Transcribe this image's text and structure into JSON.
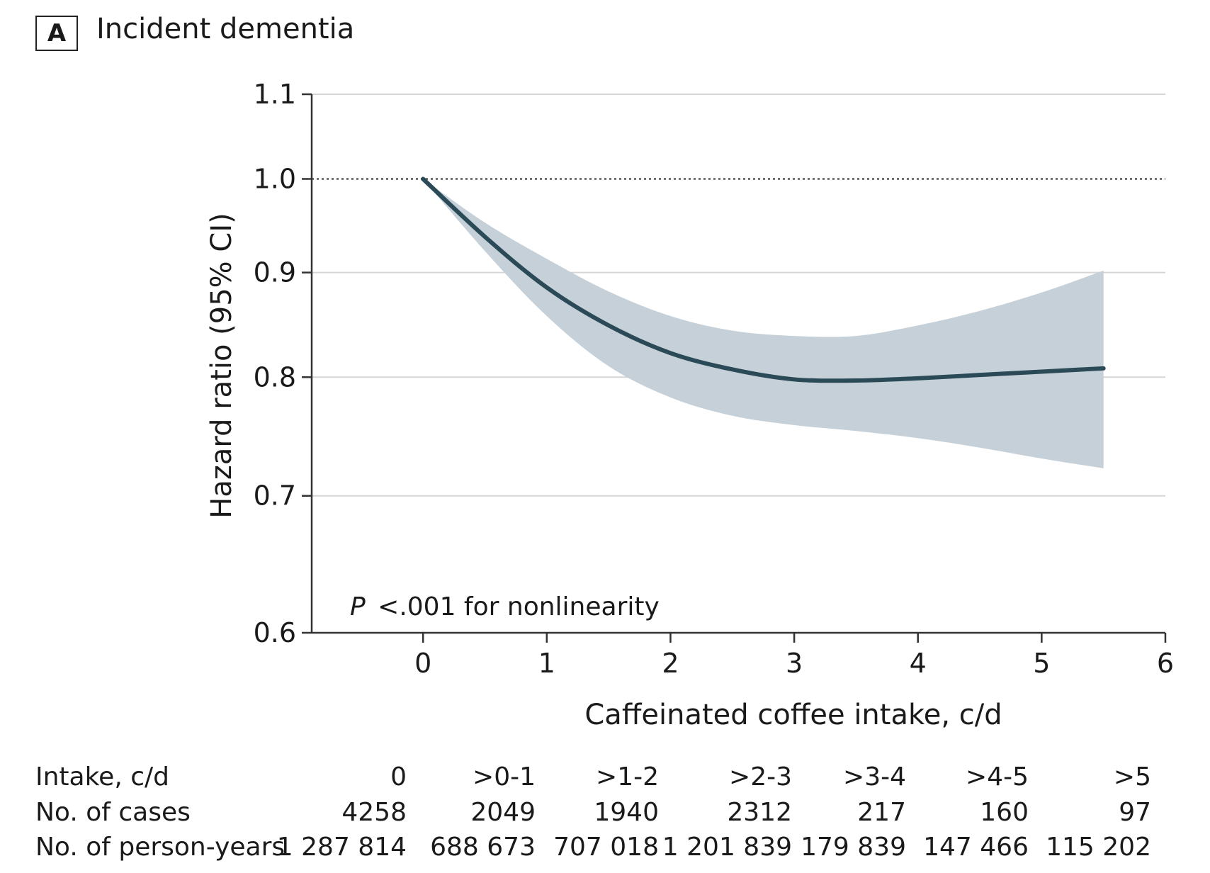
{
  "panel": {
    "badge": "A",
    "title": "Incident dementia"
  },
  "chart_data": {
    "type": "line",
    "xlabel": "Caffeinated coffee intake, c/d",
    "ylabel": "Hazard ratio (95% CI)",
    "xlim": [
      -0.9,
      6
    ],
    "ylim": [
      0.6,
      1.1
    ],
    "y_scale": "log",
    "x_ticks": [
      0,
      1,
      2,
      3,
      4,
      5,
      6
    ],
    "y_ticks": [
      0.6,
      0.7,
      0.8,
      0.9,
      1.0,
      1.1
    ],
    "y_tick_labels": [
      "0.6",
      "0.7",
      "0.8",
      "0.9",
      "1.0",
      "1.1"
    ],
    "grid": "horizontal",
    "reference_line": {
      "y": 1.0,
      "style": "dotted"
    },
    "annotation": {
      "italic": "P",
      "text": "<.001 for nonlinearity"
    },
    "x": [
      0,
      0.5,
      1.0,
      1.5,
      2.0,
      2.5,
      3.0,
      3.5,
      4.0,
      4.5,
      5.0,
      5.5
    ],
    "y": [
      1.0,
      0.937,
      0.885,
      0.848,
      0.822,
      0.807,
      0.798,
      0.797,
      0.799,
      0.802,
      0.805,
      0.808
    ],
    "lower": [
      1.0,
      0.922,
      0.857,
      0.81,
      0.782,
      0.766,
      0.758,
      0.753,
      0.747,
      0.739,
      0.73,
      0.722
    ],
    "upper": [
      1.0,
      0.952,
      0.914,
      0.881,
      0.857,
      0.843,
      0.838,
      0.838,
      0.848,
      0.862,
      0.88,
      0.902
    ],
    "colors": {
      "line": "#2b4a57",
      "band": "#c5d0d8",
      "grid": "#d6d6d6",
      "axis": "#333333"
    }
  },
  "table": {
    "rows": [
      {
        "label": "Intake, c/d",
        "cells": [
          "0",
          ">0-1",
          ">1-2",
          ">2-3",
          ">3-4",
          ">4-5",
          ">5"
        ]
      },
      {
        "label": "No. of cases",
        "cells": [
          "4258",
          "2049",
          "1940",
          "2312",
          "217",
          "160",
          "97"
        ]
      },
      {
        "label": "No. of person-years",
        "cells": [
          "1 287 814",
          "688 673",
          "707 018",
          "1 201 839",
          "179 839",
          "147 466",
          "115 202"
        ]
      }
    ]
  }
}
